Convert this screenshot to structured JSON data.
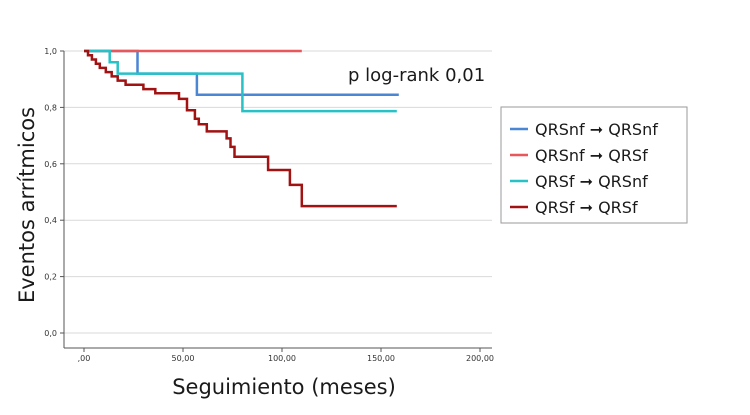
{
  "chart_data": {
    "type": "line",
    "step": true,
    "xlabel": "Seguimiento (meses)",
    "ylabel": "Eventos arrítmicos",
    "xlim": [
      0,
      200
    ],
    "ylim": [
      0,
      1
    ],
    "x_ticks": [
      0,
      50,
      100,
      150,
      200
    ],
    "x_tick_labels": [
      ",00",
      "50,00",
      "100,00",
      "150,00",
      "200,00"
    ],
    "y_ticks": [
      0,
      0.2,
      0.4,
      0.6,
      0.8,
      1.0
    ],
    "y_tick_labels": [
      "0,0",
      "0,2",
      "0,4",
      "0,6",
      "0,8",
      "1,0"
    ],
    "grid": "horizontal",
    "legend_position": "right",
    "annotation": "p log-rank 0,01",
    "series": [
      {
        "name": "QRSnf ➞ QRSnf",
        "color": "#4a86d4",
        "points": [
          [
            0,
            1.0
          ],
          [
            27,
            1.0
          ],
          [
            27,
            0.92
          ],
          [
            57,
            0.92
          ],
          [
            57,
            0.845
          ],
          [
            159,
            0.845
          ]
        ]
      },
      {
        "name": "QRSnf ➞ QRSf",
        "color": "#e8575a",
        "points": [
          [
            0,
            1.0
          ],
          [
            110,
            1.0
          ]
        ]
      },
      {
        "name": "QRSf ➞ QRSnf",
        "color": "#27c1c6",
        "points": [
          [
            0,
            1.0
          ],
          [
            13,
            1.0
          ],
          [
            13,
            0.96
          ],
          [
            17,
            0.96
          ],
          [
            17,
            0.92
          ],
          [
            80,
            0.92
          ],
          [
            80,
            0.787
          ],
          [
            158,
            0.787
          ]
        ]
      },
      {
        "name": "QRSf ➞ QRSf",
        "color": "#a11212",
        "points": [
          [
            0,
            1.0
          ],
          [
            2,
            1.0
          ],
          [
            2,
            0.985
          ],
          [
            4,
            0.985
          ],
          [
            4,
            0.97
          ],
          [
            6,
            0.97
          ],
          [
            6,
            0.955
          ],
          [
            8,
            0.955
          ],
          [
            8,
            0.94
          ],
          [
            11,
            0.94
          ],
          [
            11,
            0.925
          ],
          [
            14,
            0.925
          ],
          [
            14,
            0.91
          ],
          [
            17,
            0.91
          ],
          [
            17,
            0.895
          ],
          [
            21,
            0.895
          ],
          [
            21,
            0.88
          ],
          [
            30,
            0.88
          ],
          [
            30,
            0.865
          ],
          [
            36,
            0.865
          ],
          [
            36,
            0.85
          ],
          [
            48,
            0.85
          ],
          [
            48,
            0.83
          ],
          [
            52,
            0.83
          ],
          [
            52,
            0.79
          ],
          [
            56,
            0.79
          ],
          [
            56,
            0.76
          ],
          [
            58,
            0.76
          ],
          [
            58,
            0.74
          ],
          [
            62,
            0.74
          ],
          [
            62,
            0.715
          ],
          [
            72,
            0.715
          ],
          [
            72,
            0.69
          ],
          [
            74,
            0.69
          ],
          [
            74,
            0.66
          ],
          [
            76,
            0.66
          ],
          [
            76,
            0.625
          ],
          [
            93,
            0.625
          ],
          [
            93,
            0.578
          ],
          [
            104,
            0.578
          ],
          [
            104,
            0.525
          ],
          [
            110,
            0.525
          ],
          [
            110,
            0.45
          ],
          [
            158,
            0.45
          ]
        ]
      }
    ]
  }
}
